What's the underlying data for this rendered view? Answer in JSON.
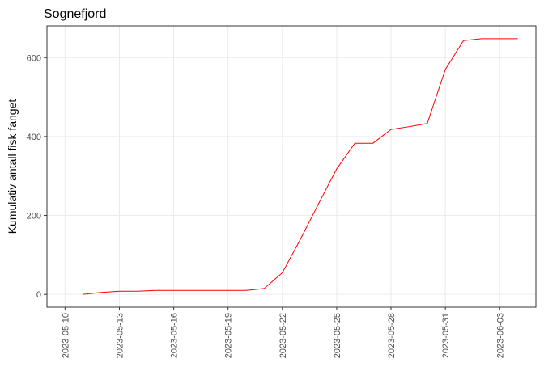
{
  "chart_data": {
    "type": "line",
    "title": "Sognefjord",
    "y_label": "Kumulativ antall fisk fanget",
    "x": [
      "2023-05-11",
      "2023-05-12",
      "2023-05-13",
      "2023-05-14",
      "2023-05-15",
      "2023-05-16",
      "2023-05-17",
      "2023-05-18",
      "2023-05-19",
      "2023-05-20",
      "2023-05-21",
      "2023-05-22",
      "2023-05-23",
      "2023-05-24",
      "2023-05-25",
      "2023-05-26",
      "2023-05-27",
      "2023-05-28",
      "2023-05-29",
      "2023-05-30",
      "2023-05-31",
      "2023-06-01",
      "2023-06-02",
      "2023-06-03",
      "2023-06-04"
    ],
    "series": [
      {
        "name": "Sognefjord",
        "color": "#ff0000",
        "values": [
          0,
          5,
          8,
          8,
          10,
          10,
          10,
          10,
          10,
          10,
          15,
          55,
          140,
          230,
          318,
          383,
          383,
          418,
          425,
          433,
          570,
          643,
          648,
          648,
          648
        ]
      }
    ],
    "xlim": [
      "2023-05-09",
      "2023-06-05"
    ],
    "xticks": [
      "2023-05-10",
      "2023-05-13",
      "2023-05-16",
      "2023-05-19",
      "2023-05-22",
      "2023-05-25",
      "2023-05-28",
      "2023-05-31",
      "2023-06-03"
    ],
    "ylim": [
      -32.4,
      680.4
    ],
    "yticks": [
      0,
      200,
      400,
      600
    ],
    "grid": true
  }
}
